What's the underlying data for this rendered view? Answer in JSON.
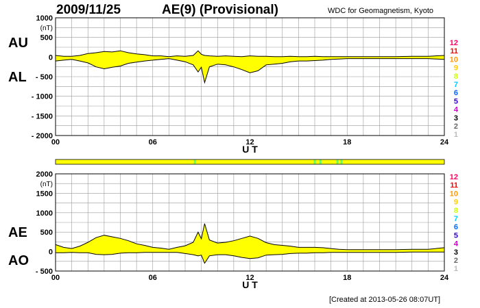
{
  "header": {
    "date": "2009/11/25",
    "title": "AE(9)  (Provisional)",
    "source": "WDC for Geomagnetism, Kyoto"
  },
  "footer": {
    "created": "[Created at 2013-05-26 08:07UT]"
  },
  "colors": {
    "fill": "#ffff00",
    "line": "#000000",
    "grid": "#999999",
    "station_mark": "#66ff66"
  },
  "station_scale": [
    {
      "label": "12",
      "color": "#ff0066"
    },
    {
      "label": "11",
      "color": "#ff0000"
    },
    {
      "label": "10",
      "color": "#ff9900"
    },
    {
      "label": "9",
      "color": "#ffcc00"
    },
    {
      "label": "8",
      "color": "#ccff00"
    },
    {
      "label": "7",
      "color": "#00ccff"
    },
    {
      "label": "6",
      "color": "#0066ff"
    },
    {
      "label": "5",
      "color": "#3300cc"
    },
    {
      "label": "4",
      "color": "#cc00cc"
    },
    {
      "label": "3",
      "color": "#000000"
    },
    {
      "label": "2",
      "color": "#666666"
    },
    {
      "label": "1",
      "color": "#bbbbbb"
    }
  ],
  "station_bar": {
    "fill": "#ffff00",
    "marks": [
      8.6,
      16.0,
      16.35,
      17.4,
      17.65
    ]
  },
  "chart_data": [
    {
      "type": "area",
      "name": "AU/AL",
      "labels": {
        "upper": "AU",
        "lower": "AL"
      },
      "xlabel": "U T",
      "ylabel": "(nT)",
      "xlim": [
        0,
        24
      ],
      "ylim": [
        -2000,
        1000
      ],
      "xticks": [
        "00",
        "06",
        "12",
        "18",
        "24"
      ],
      "yticks": [
        "1000",
        "500",
        "0",
        "- 500",
        "- 1000",
        "- 1500",
        "- 2000"
      ],
      "ytick_values": [
        1000,
        500,
        0,
        -500,
        -1000,
        -1500,
        -2000
      ],
      "grid": true,
      "series": [
        {
          "name": "AU",
          "x": [
            0,
            0.5,
            1,
            1.5,
            2,
            2.5,
            3,
            3.5,
            4,
            4.5,
            5,
            5.5,
            6,
            6.5,
            7,
            7.5,
            8,
            8.5,
            8.8,
            9,
            9.2,
            9.5,
            10,
            10.5,
            11,
            11.5,
            12,
            12.5,
            13,
            13.5,
            14,
            14.5,
            15,
            15.5,
            16,
            16.5,
            17,
            17.5,
            18,
            19,
            20,
            21,
            22,
            23,
            24
          ],
          "y": [
            40,
            20,
            20,
            40,
            90,
            110,
            140,
            130,
            160,
            110,
            80,
            60,
            30,
            30,
            10,
            30,
            20,
            40,
            160,
            70,
            40,
            30,
            20,
            30,
            20,
            10,
            30,
            20,
            20,
            10,
            10,
            20,
            10,
            10,
            20,
            10,
            10,
            10,
            10,
            10,
            10,
            10,
            20,
            20,
            40
          ]
        },
        {
          "name": "AL",
          "x": [
            0,
            0.5,
            1,
            1.5,
            2,
            2.5,
            3,
            3.5,
            4,
            4.5,
            5,
            5.5,
            6,
            6.5,
            7,
            7.5,
            8,
            8.5,
            8.8,
            9,
            9.2,
            9.5,
            10,
            10.5,
            11,
            11.5,
            12,
            12.5,
            13,
            13.5,
            14,
            14.5,
            15,
            15.5,
            16,
            16.5,
            17,
            17.5,
            18,
            19,
            20,
            21,
            22,
            23,
            24
          ],
          "y": [
            -100,
            -80,
            -60,
            -100,
            -150,
            -250,
            -300,
            -260,
            -230,
            -160,
            -130,
            -100,
            -80,
            -60,
            -40,
            -80,
            -120,
            -200,
            -380,
            -260,
            -650,
            -250,
            -180,
            -200,
            -250,
            -320,
            -400,
            -350,
            -200,
            -180,
            -160,
            -120,
            -100,
            -100,
            -90,
            -80,
            -60,
            -50,
            -40,
            -40,
            -40,
            -40,
            -40,
            -40,
            -60
          ]
        }
      ]
    },
    {
      "type": "area",
      "name": "AE/AO",
      "labels": {
        "upper": "AE",
        "lower": "AO"
      },
      "xlabel": "U T",
      "ylabel": "(nT)",
      "xlim": [
        0,
        24
      ],
      "ylim": [
        -500,
        2000
      ],
      "xticks": [
        "00",
        "06",
        "12",
        "18",
        "24"
      ],
      "yticks": [
        "2000",
        "1500",
        "1000",
        "500",
        "0",
        "- 500"
      ],
      "ytick_values": [
        2000,
        1500,
        1000,
        500,
        0,
        -500
      ],
      "grid": true,
      "series": [
        {
          "name": "AE",
          "x": [
            0,
            0.5,
            1,
            1.5,
            2,
            2.5,
            3,
            3.5,
            4,
            4.5,
            5,
            5.5,
            6,
            6.5,
            7,
            7.5,
            8,
            8.5,
            8.8,
            9,
            9.2,
            9.5,
            10,
            10.5,
            11,
            11.5,
            12,
            12.5,
            13,
            13.5,
            14,
            14.5,
            15,
            15.5,
            16,
            16.5,
            17,
            17.5,
            18,
            19,
            20,
            21,
            22,
            23,
            24
          ],
          "y": [
            180,
            110,
            80,
            140,
            240,
            360,
            420,
            380,
            340,
            280,
            200,
            160,
            110,
            90,
            60,
            110,
            150,
            240,
            500,
            330,
            720,
            300,
            220,
            240,
            280,
            340,
            400,
            340,
            230,
            180,
            160,
            140,
            110,
            110,
            110,
            100,
            80,
            60,
            50,
            50,
            50,
            50,
            60,
            60,
            100
          ]
        },
        {
          "name": "AO",
          "x": [
            0,
            0.5,
            1,
            1.5,
            2,
            2.5,
            3,
            3.5,
            4,
            4.5,
            5,
            5.5,
            6,
            6.5,
            7,
            7.5,
            8,
            8.5,
            8.8,
            9,
            9.2,
            9.5,
            10,
            10.5,
            11,
            11.5,
            12,
            12.5,
            13,
            13.5,
            14,
            14.5,
            15,
            15.5,
            16,
            16.5,
            17,
            17.5,
            18,
            19,
            20,
            21,
            22,
            23,
            24
          ],
          "y": [
            -30,
            -30,
            -20,
            -30,
            -30,
            -70,
            -80,
            -70,
            -40,
            -30,
            -30,
            -20,
            -20,
            -20,
            -20,
            -20,
            -50,
            -80,
            -110,
            -90,
            -300,
            -110,
            -80,
            -80,
            -110,
            -150,
            -180,
            -160,
            -90,
            -80,
            -70,
            -50,
            -40,
            -40,
            -30,
            -30,
            -20,
            -20,
            -20,
            -20,
            -20,
            -20,
            -10,
            -10,
            -10
          ]
        }
      ]
    }
  ]
}
